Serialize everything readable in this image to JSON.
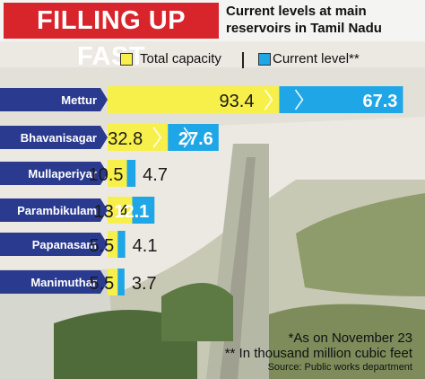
{
  "header": {
    "title": "FILLING UP FAST",
    "subtitle": "Current levels at main reservoirs in Tamil Nadu"
  },
  "legend": {
    "total_label": "Total capacity",
    "current_label": "Current level**"
  },
  "colors": {
    "total": "#f8f04a",
    "current": "#1ea6e6",
    "title_bg": "#d8242b",
    "label_bg": "#2a3b8f"
  },
  "chart_data": {
    "type": "bar",
    "categories": [
      "Mettur",
      "Bhavanisagar",
      "Mullaperiyar",
      "Parambikulam",
      "Papanasam",
      "Manimuthar"
    ],
    "series": [
      {
        "name": "Total capacity",
        "values": [
          93.4,
          32.8,
          10.5,
          13.4,
          5.5,
          5.5
        ]
      },
      {
        "name": "Current level**",
        "values": [
          67.3,
          27.6,
          4.7,
          12.1,
          4.1,
          3.7
        ]
      }
    ]
  },
  "footer": {
    "note1": "*As on November 23",
    "note2": "** In thousand million cubic feet",
    "source": "Source: Public works department"
  }
}
